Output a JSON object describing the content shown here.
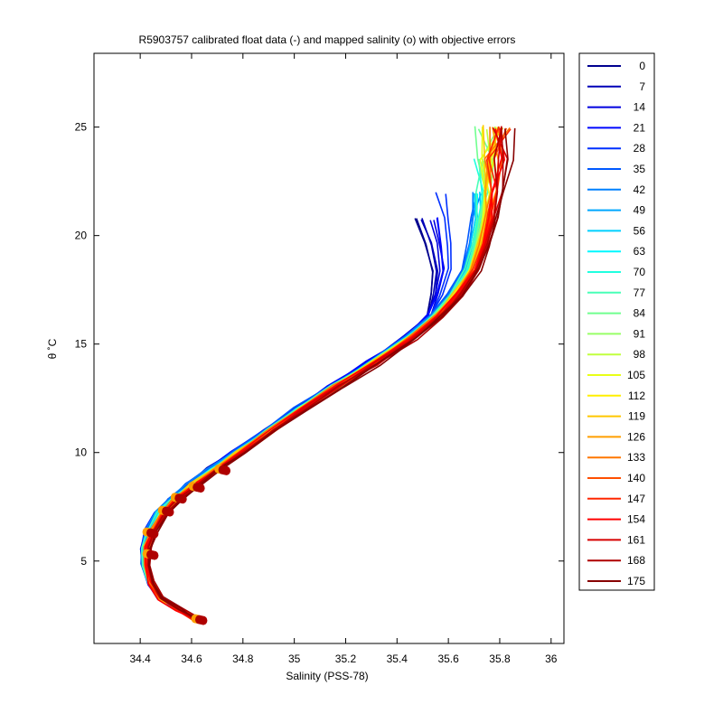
{
  "chart_data": {
    "type": "line",
    "title": "R5903757 calibrated float data (-) and mapped salinity (o) with objective errors",
    "xlabel": "Salinity (PSS-78)",
    "ylabel": "θ ˚C",
    "xlim": [
      34.22,
      36.05
    ],
    "ylim": [
      1.2,
      28.4
    ],
    "xticks": [
      "34.4",
      "34.6",
      "34.8",
      "35",
      "35.2",
      "35.4",
      "35.6",
      "35.8",
      "36"
    ],
    "yticks": [
      "5",
      "10",
      "15",
      "20",
      "25"
    ],
    "grid": false,
    "legend_position": "outside-right",
    "legend": [
      "0",
      "7",
      "14",
      "21",
      "28",
      "35",
      "42",
      "49",
      "56",
      "63",
      "70",
      "77",
      "84",
      "91",
      "98",
      "105",
      "112",
      "119",
      "126",
      "133",
      "140",
      "147",
      "154",
      "161",
      "168",
      "175"
    ],
    "legend_colors": [
      "#00008F",
      "#0000B7",
      "#0000DF",
      "#0008FF",
      "#0030FF",
      "#0058FF",
      "#0080FF",
      "#00A8FF",
      "#00D0FF",
      "#00F8FF",
      "#20FFDF",
      "#48FFB7",
      "#70FF8F",
      "#98FF67",
      "#C0FF3F",
      "#E8FF17",
      "#FFEF00",
      "#FFC700",
      "#FF9F00",
      "#FF7700",
      "#FF4F00",
      "#FF2700",
      "#FF0000",
      "#D70000",
      "#AF0000",
      "#870000"
    ],
    "profile_shape": {
      "salinity": [
        34.62,
        34.55,
        34.48,
        34.44,
        34.42,
        34.42,
        34.44,
        34.48,
        34.53,
        34.6,
        34.68,
        34.78,
        34.9,
        35.02,
        35.15,
        35.3,
        35.45,
        35.55,
        35.62,
        35.68,
        35.71,
        35.73,
        35.74,
        35.74,
        35.75
      ],
      "theta": [
        2.3,
        2.8,
        3.3,
        4.0,
        4.8,
        5.6,
        6.4,
        7.2,
        7.8,
        8.5,
        9.2,
        10.0,
        11.0,
        12.0,
        13.0,
        14.1,
        15.3,
        16.3,
        17.3,
        18.4,
        19.6,
        20.8,
        22.0,
        23.5,
        25.0
      ]
    },
    "mapped_points": {
      "salinity": [
        34.63,
        34.44,
        34.44,
        34.5,
        34.55,
        34.62,
        34.72
      ],
      "theta": [
        2.3,
        5.3,
        6.3,
        7.3,
        7.9,
        8.4,
        9.2
      ]
    }
  }
}
